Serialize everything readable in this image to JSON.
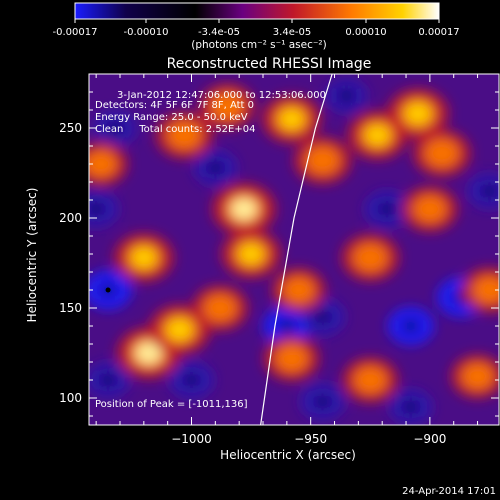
{
  "colorbar": {
    "ticks": [
      "-0.00017",
      "-0.00010",
      "-3.4e-05",
      "3.4e-05",
      "0.00010",
      "0.00017"
    ],
    "units": "(photons cm⁻² s⁻¹ asec⁻²)",
    "colors": [
      "#1a1cff",
      "#10004a",
      "#000000",
      "#6a0080",
      "#c0182a",
      "#ff7a00",
      "#ffd200",
      "#ffffff"
    ]
  },
  "chart_data": {
    "type": "heatmap",
    "title": "Reconstructed RHESSI Image",
    "xlabel": "Heliocentric X (arcsec)",
    "ylabel": "Heliocentric Y (arcsec)",
    "xlim": [
      -1043,
      -871
    ],
    "ylim": [
      85,
      280
    ],
    "xticks": [
      -1000,
      -950,
      -900
    ],
    "yticks": [
      100,
      150,
      200,
      250
    ],
    "value_range": [
      -0.00017,
      0.00017
    ],
    "annotations": [
      "3-Jan-2012 12:47:06.000 to 12:53:06.000",
      "Detectors: 4F 5F 6F 7F 8F, Att 0",
      "Energy Range: 25.0 - 50.0 keV",
      "Clean     Total counts: 2.52E+04"
    ],
    "peak_label": "Position of Peak = [-1011,136]",
    "peak": [
      -1011,
      136
    ],
    "limb_line": [
      [
        -971,
        85
      ],
      [
        -965,
        140
      ],
      [
        -957,
        200
      ],
      [
        -948,
        250
      ],
      [
        -941,
        280
      ]
    ],
    "hot_regions": [
      {
        "x": -1018,
        "y": 125,
        "level": 1.0
      },
      {
        "x": -1005,
        "y": 138,
        "level": 0.9
      },
      {
        "x": -1020,
        "y": 178,
        "level": 0.8
      },
      {
        "x": -978,
        "y": 205,
        "level": 1.0
      },
      {
        "x": -975,
        "y": 180,
        "level": 0.8
      },
      {
        "x": -1003,
        "y": 246,
        "level": 0.7
      },
      {
        "x": -985,
        "y": 262,
        "level": 0.6
      },
      {
        "x": -958,
        "y": 255,
        "level": 0.8
      },
      {
        "x": -945,
        "y": 232,
        "level": 0.7
      },
      {
        "x": -922,
        "y": 246,
        "level": 0.8
      },
      {
        "x": -905,
        "y": 258,
        "level": 0.9
      },
      {
        "x": -895,
        "y": 236,
        "level": 0.7
      },
      {
        "x": -925,
        "y": 178,
        "level": 0.7
      },
      {
        "x": -900,
        "y": 205,
        "level": 0.6
      },
      {
        "x": -875,
        "y": 160,
        "level": 0.6
      },
      {
        "x": -988,
        "y": 150,
        "level": 0.6
      },
      {
        "x": -958,
        "y": 122,
        "level": 0.6
      },
      {
        "x": -925,
        "y": 110,
        "level": 0.6
      },
      {
        "x": -880,
        "y": 112,
        "level": 0.5
      },
      {
        "x": -1038,
        "y": 230,
        "level": 0.5
      },
      {
        "x": -955,
        "y": 160,
        "level": 0.5
      }
    ],
    "cold_regions": [
      {
        "x": -1035,
        "y": 160,
        "level": 1.0
      },
      {
        "x": -1032,
        "y": 250,
        "level": 0.7
      },
      {
        "x": -1040,
        "y": 205,
        "level": 0.8
      },
      {
        "x": -990,
        "y": 228,
        "level": 0.7
      },
      {
        "x": -960,
        "y": 140,
        "level": 1.0
      },
      {
        "x": -945,
        "y": 145,
        "level": 0.8
      },
      {
        "x": -918,
        "y": 205,
        "level": 0.8
      },
      {
        "x": -908,
        "y": 140,
        "level": 0.9
      },
      {
        "x": -887,
        "y": 156,
        "level": 1.0
      },
      {
        "x": -908,
        "y": 95,
        "level": 0.7
      },
      {
        "x": -1000,
        "y": 110,
        "level": 0.8
      },
      {
        "x": -1035,
        "y": 110,
        "level": 0.7
      },
      {
        "x": -935,
        "y": 268,
        "level": 0.6
      },
      {
        "x": -875,
        "y": 215,
        "level": 0.7
      },
      {
        "x": -945,
        "y": 98,
        "level": 0.8
      }
    ]
  },
  "footer": {
    "timestamp": "24-Apr-2014 17:01"
  }
}
